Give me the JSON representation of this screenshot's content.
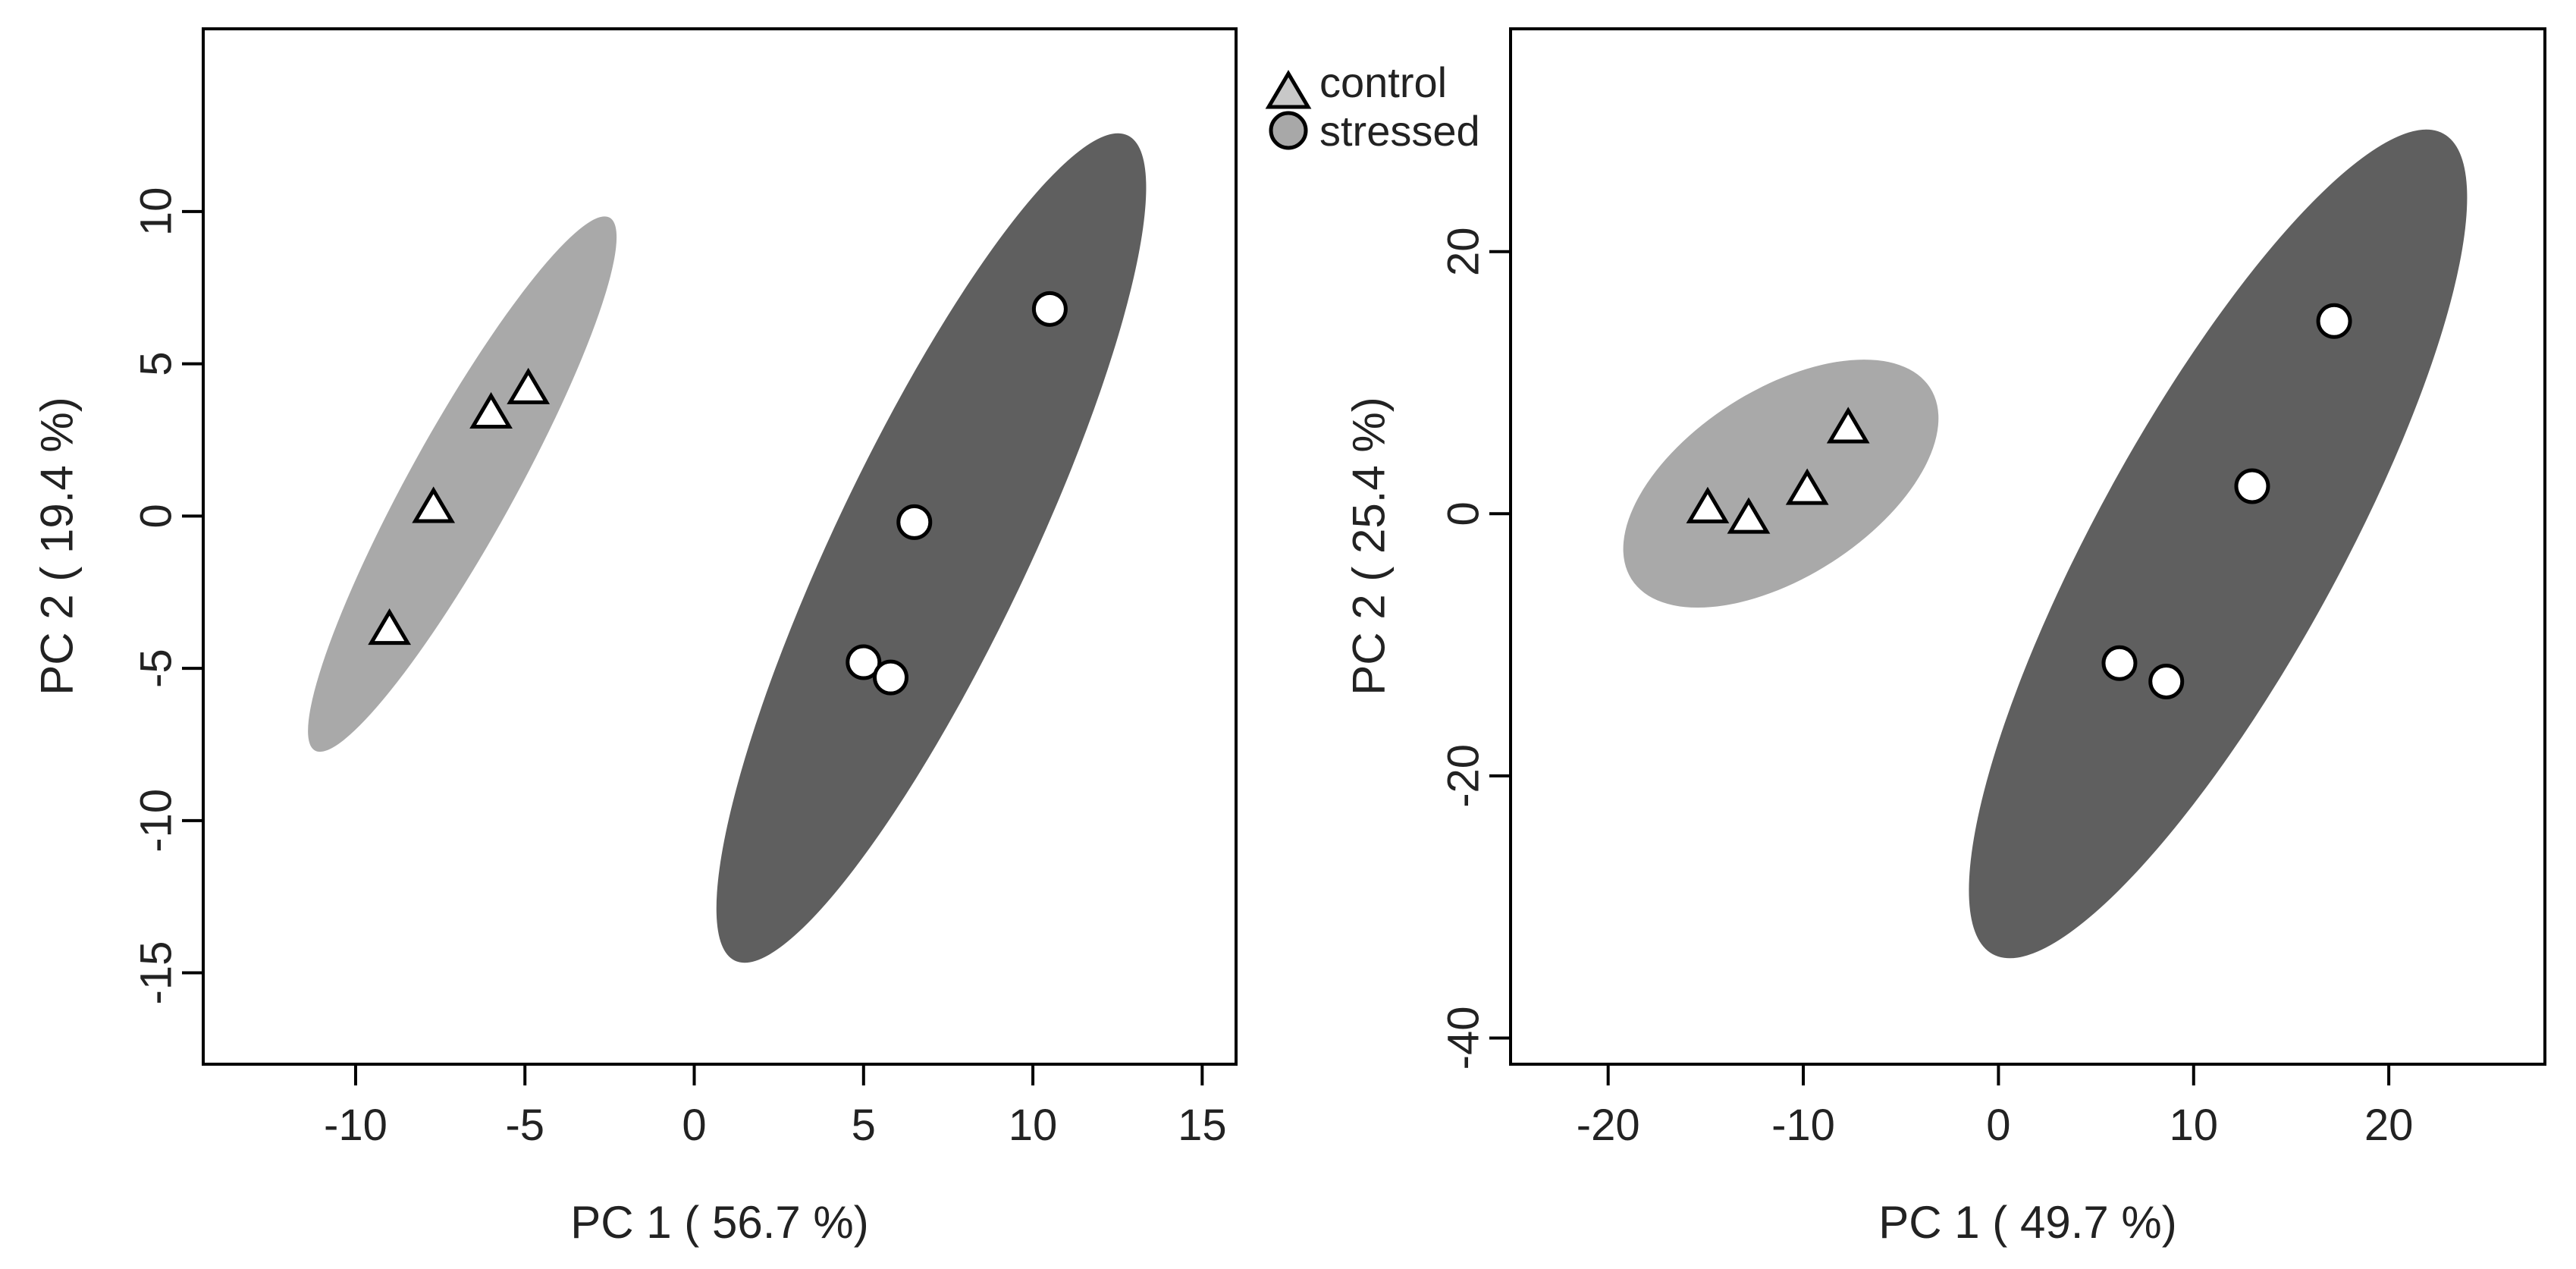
{
  "legend": {
    "items": [
      {
        "label": "control",
        "marker": "triangle",
        "fill": "#c8c8c8"
      },
      {
        "label": "stressed",
        "marker": "circle",
        "fill": "#a8a8a8"
      }
    ]
  },
  "colors": {
    "control_ellipse": "#a9a9a9",
    "stressed_ellipse": "#5f5f5f",
    "marker_fill": "#ffffff",
    "marker_stroke": "#000000",
    "axis": "#000000"
  },
  "chart_data": [
    {
      "type": "scatter",
      "xlabel": "PC 1 ( 56.7 %)",
      "ylabel": "PC 2 ( 19.4 %)",
      "xlim": [
        -14.5,
        16
      ],
      "ylim": [
        -18,
        16
      ],
      "xticks": [
        -10,
        -5,
        0,
        5,
        10,
        15
      ],
      "xtick_labels": [
        "-10",
        "-5",
        "0",
        "5",
        "10",
        "15"
      ],
      "yticks": [
        -15,
        -10,
        -5,
        0,
        5,
        10
      ],
      "ytick_labels": [
        "-15",
        "-10",
        "-5",
        "0",
        "5",
        "10"
      ],
      "grid": false,
      "series": [
        {
          "name": "control",
          "marker": "triangle",
          "points": [
            {
              "x": -4.9,
              "y": 4.2
            },
            {
              "x": -6.0,
              "y": 3.4
            },
            {
              "x": -7.7,
              "y": 0.3
            },
            {
              "x": -9.0,
              "y": -3.7
            }
          ],
          "ellipse": {
            "p1": [
              -11.2,
              -7.7
            ],
            "p2": [
              -2.5,
              9.8
            ],
            "width": 1.55,
            "fill": "#a9a9a9"
          }
        },
        {
          "name": "stressed",
          "marker": "circle",
          "points": [
            {
              "x": 10.5,
              "y": 6.8
            },
            {
              "x": 6.5,
              "y": -0.2
            },
            {
              "x": 5.0,
              "y": -4.8
            },
            {
              "x": 5.8,
              "y": -5.3
            }
          ],
          "ellipse": {
            "p1": [
              1.2,
              -14.6
            ],
            "p2": [
              12.8,
              12.5
            ],
            "width": 2.85,
            "fill": "#5f5f5f"
          }
        }
      ]
    },
    {
      "type": "scatter",
      "xlabel": "PC 1 ( 49.7 %)",
      "ylabel": "PC 2 ( 25.4 %)",
      "xlim": [
        -25,
        28
      ],
      "ylim": [
        -42,
        37
      ],
      "xticks": [
        -20,
        -10,
        0,
        10,
        20
      ],
      "xtick_labels": [
        "-20",
        "-10",
        "0",
        "10",
        "20"
      ],
      "yticks": [
        -40,
        -20,
        0,
        20
      ],
      "ytick_labels": [
        "-40",
        "-20",
        "0",
        "20"
      ],
      "grid": false,
      "series": [
        {
          "name": "control",
          "marker": "triangle",
          "points": [
            {
              "x": -7.7,
              "y": 6.6
            },
            {
              "x": -9.8,
              "y": 1.9
            },
            {
              "x": -14.9,
              "y": 0.5
            },
            {
              "x": -12.8,
              "y": -0.3
            }
          ],
          "ellipse": {
            "p1": [
              -18.8,
              -5.0
            ],
            "p2": [
              -3.5,
              9.6
            ],
            "width": 4.8,
            "fill": "#a9a9a9"
          }
        },
        {
          "name": "stressed",
          "marker": "circle",
          "points": [
            {
              "x": 17.2,
              "y": 14.7
            },
            {
              "x": 13.0,
              "y": 2.1
            },
            {
              "x": 6.2,
              "y": -11.4
            },
            {
              "x": 8.6,
              "y": -12.8
            }
          ],
          "ellipse": {
            "p1": [
              -0.3,
              -33.6
            ],
            "p2": [
              22.8,
              29.0
            ],
            "width": 6.2,
            "fill": "#5f5f5f"
          }
        }
      ]
    }
  ]
}
